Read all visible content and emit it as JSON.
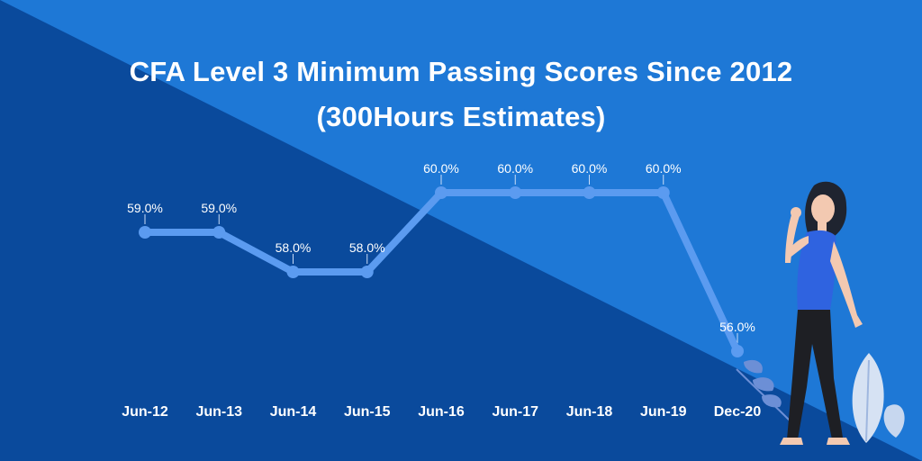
{
  "title_line1": "CFA Level 3 Minimum Passing Scores Since 2012",
  "title_line2": "(300Hours Estimates)",
  "colors": {
    "bg_dark": "#0a4a9c",
    "bg_light": "#1e78d6",
    "line": "#5b9bf0",
    "text": "#ffffff"
  },
  "chart_data": {
    "type": "line",
    "title": "CFA Level 3 Minimum Passing Scores Since 2012 (300Hours Estimates)",
    "categories": [
      "Jun-12",
      "Jun-13",
      "Jun-14",
      "Jun-15",
      "Jun-16",
      "Jun-17",
      "Jun-18",
      "Jun-19",
      "Dec-20"
    ],
    "values": [
      59.0,
      59.0,
      58.0,
      58.0,
      60.0,
      60.0,
      60.0,
      60.0,
      56.0
    ],
    "labels": [
      "59.0%",
      "59.0%",
      "58.0%",
      "58.0%",
      "60.0%",
      "60.0%",
      "60.0%",
      "60.0%",
      "56.0%"
    ],
    "xlabel": "",
    "ylabel": "",
    "ylim": [
      56,
      60
    ],
    "grid": false,
    "legend": "none"
  }
}
